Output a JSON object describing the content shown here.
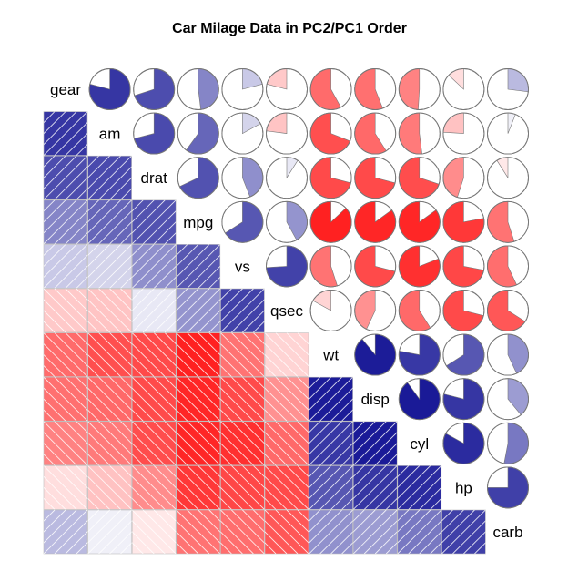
{
  "chart_data": {
    "type": "heatmap",
    "title": "Car Milage Data in PC2/PC1 Order",
    "variables": [
      "gear",
      "am",
      "drat",
      "mpg",
      "vs",
      "qsec",
      "wt",
      "disp",
      "cyl",
      "hp",
      "carb"
    ],
    "lower_panel": "shade",
    "upper_panel": "pie",
    "diagonal_panel": "text",
    "color_negative": "#ff0000",
    "color_positive": "#00008b",
    "correlation_matrix": [
      [
        1.0,
        0.79,
        0.7,
        0.48,
        0.21,
        -0.21,
        -0.58,
        -0.56,
        -0.49,
        -0.13,
        0.27
      ],
      [
        0.79,
        1.0,
        0.71,
        0.6,
        0.17,
        -0.23,
        -0.69,
        -0.59,
        -0.52,
        -0.24,
        0.06
      ],
      [
        0.7,
        0.71,
        1.0,
        0.68,
        0.44,
        0.09,
        -0.71,
        -0.71,
        -0.7,
        -0.45,
        -0.09
      ],
      [
        0.48,
        0.6,
        0.68,
        1.0,
        0.66,
        0.42,
        -0.87,
        -0.85,
        -0.85,
        -0.78,
        -0.55
      ],
      [
        0.21,
        0.17,
        0.44,
        0.66,
        1.0,
        0.74,
        -0.55,
        -0.71,
        -0.81,
        -0.72,
        -0.57
      ],
      [
        -0.21,
        -0.23,
        0.09,
        0.42,
        0.74,
        1.0,
        -0.17,
        -0.43,
        -0.59,
        -0.71,
        -0.66
      ],
      [
        -0.58,
        -0.69,
        -0.71,
        -0.87,
        -0.55,
        -0.17,
        1.0,
        0.89,
        0.78,
        0.66,
        0.43
      ],
      [
        -0.56,
        -0.59,
        -0.71,
        -0.85,
        -0.71,
        -0.43,
        0.89,
        1.0,
        0.9,
        0.79,
        0.39
      ],
      [
        -0.49,
        -0.52,
        -0.7,
        -0.85,
        -0.81,
        -0.59,
        0.78,
        0.9,
        1.0,
        0.83,
        0.53
      ],
      [
        -0.13,
        -0.24,
        -0.45,
        -0.78,
        -0.72,
        -0.71,
        0.66,
        0.79,
        0.83,
        1.0,
        0.75
      ],
      [
        0.27,
        0.06,
        -0.09,
        -0.55,
        -0.57,
        -0.66,
        0.43,
        0.39,
        0.53,
        0.75,
        1.0
      ]
    ]
  }
}
